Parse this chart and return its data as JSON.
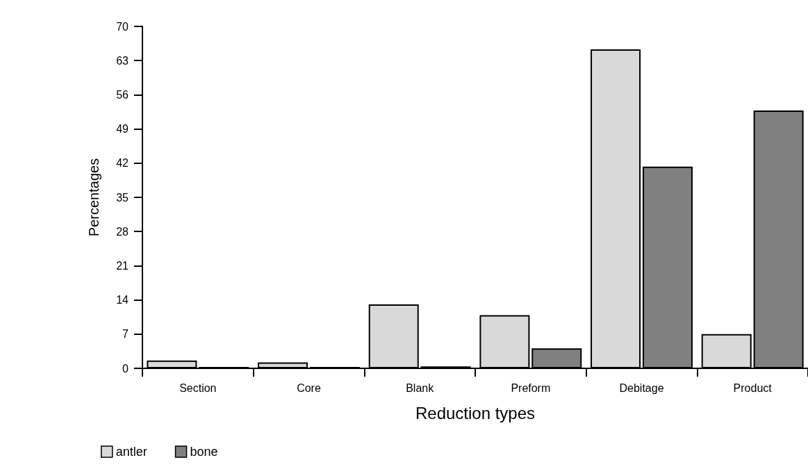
{
  "chart_data": {
    "type": "bar",
    "xlabel": "Reduction types",
    "ylabel": "Percentages",
    "categories": [
      "Section",
      "Core",
      "Blank",
      "Preform",
      "Debitage",
      "Product"
    ],
    "series": [
      {
        "name": "antler",
        "color": "#d9d9d9",
        "values": [
          1.6,
          1.2,
          13.1,
          10.9,
          65.3,
          7.0
        ]
      },
      {
        "name": "bone",
        "color": "#808080",
        "values": [
          0.3,
          0.3,
          0.4,
          4.1,
          41.3,
          52.8
        ]
      }
    ],
    "ylim": [
      0,
      70
    ],
    "yticks": [
      0,
      7,
      14,
      21,
      28,
      35,
      42,
      49,
      56,
      63,
      70
    ],
    "grid": false,
    "legend": "bottom left"
  }
}
